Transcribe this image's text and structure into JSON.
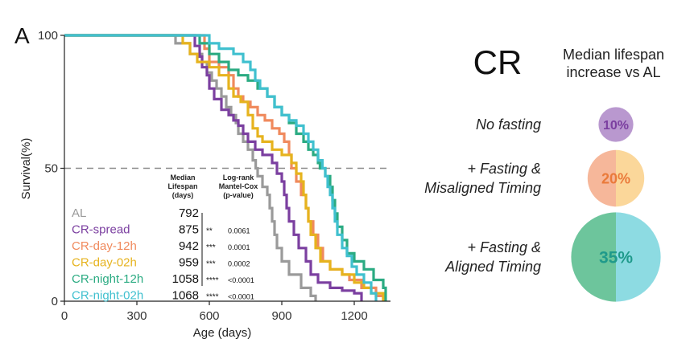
{
  "panel_label": "A",
  "chart_data": {
    "type": "line",
    "subtype": "survival-step",
    "xlabel": "Age (days)",
    "ylabel": "Survival(%)",
    "xlim": [
      0,
      1350
    ],
    "ylim": [
      0,
      100
    ],
    "xticks": [
      0,
      300,
      600,
      900,
      1200
    ],
    "yticks": [
      0,
      50,
      100
    ],
    "reference_line": {
      "y": 50,
      "style": "dashed"
    },
    "table_headers": {
      "median": [
        "Median",
        "Lifespan",
        "(days)"
      ],
      "logrank": [
        "Log-rank",
        "Mantel-Cox",
        "(p-value)"
      ]
    },
    "series": [
      {
        "name": "AL",
        "color": "#9a9a9a",
        "median_days": "792",
        "stars": "",
        "p_value": "",
        "points": [
          [
            0,
            100
          ],
          [
            430,
            100
          ],
          [
            460,
            97
          ],
          [
            520,
            93
          ],
          [
            570,
            90
          ],
          [
            590,
            86
          ],
          [
            610,
            83
          ],
          [
            630,
            80
          ],
          [
            650,
            77
          ],
          [
            670,
            73
          ],
          [
            690,
            70
          ],
          [
            710,
            67
          ],
          [
            720,
            63
          ],
          [
            740,
            60
          ],
          [
            760,
            57
          ],
          [
            780,
            53
          ],
          [
            792,
            50
          ],
          [
            800,
            47
          ],
          [
            820,
            43
          ],
          [
            840,
            40
          ],
          [
            850,
            35
          ],
          [
            860,
            30
          ],
          [
            870,
            25
          ],
          [
            880,
            20
          ],
          [
            900,
            15
          ],
          [
            930,
            10
          ],
          [
            980,
            5
          ],
          [
            1020,
            2
          ],
          [
            1040,
            0
          ]
        ]
      },
      {
        "name": "CR-spread",
        "color": "#7b3fa0",
        "median_days": "875",
        "stars": "**",
        "p_value": "0.0061",
        "points": [
          [
            0,
            100
          ],
          [
            520,
            100
          ],
          [
            540,
            96
          ],
          [
            560,
            92
          ],
          [
            570,
            88
          ],
          [
            590,
            85
          ],
          [
            600,
            80
          ],
          [
            620,
            76
          ],
          [
            650,
            72
          ],
          [
            680,
            70
          ],
          [
            700,
            68
          ],
          [
            720,
            66
          ],
          [
            740,
            63
          ],
          [
            760,
            60
          ],
          [
            790,
            57
          ],
          [
            820,
            55
          ],
          [
            860,
            52
          ],
          [
            880,
            48
          ],
          [
            900,
            45
          ],
          [
            910,
            40
          ],
          [
            920,
            35
          ],
          [
            930,
            30
          ],
          [
            950,
            25
          ],
          [
            970,
            20
          ],
          [
            1000,
            15
          ],
          [
            1020,
            10
          ],
          [
            1050,
            7
          ],
          [
            1100,
            5
          ],
          [
            1150,
            4
          ],
          [
            1200,
            3
          ],
          [
            1230,
            0
          ]
        ]
      },
      {
        "name": "CR-day-12h",
        "color": "#f08a5d",
        "median_days": "942",
        "stars": "***",
        "p_value": "0.0001",
        "points": [
          [
            0,
            100
          ],
          [
            560,
            100
          ],
          [
            580,
            95
          ],
          [
            600,
            90
          ],
          [
            640,
            88
          ],
          [
            680,
            85
          ],
          [
            700,
            80
          ],
          [
            720,
            77
          ],
          [
            740,
            75
          ],
          [
            770,
            73
          ],
          [
            800,
            70
          ],
          [
            830,
            68
          ],
          [
            860,
            65
          ],
          [
            890,
            63
          ],
          [
            910,
            60
          ],
          [
            930,
            55
          ],
          [
            940,
            50
          ],
          [
            960,
            45
          ],
          [
            980,
            40
          ],
          [
            1000,
            35
          ],
          [
            1010,
            30
          ],
          [
            1030,
            25
          ],
          [
            1050,
            20
          ],
          [
            1070,
            15
          ],
          [
            1100,
            12
          ],
          [
            1150,
            10
          ],
          [
            1180,
            8
          ],
          [
            1230,
            5
          ],
          [
            1290,
            2
          ],
          [
            1320,
            0
          ]
        ]
      },
      {
        "name": "CR-day-02h",
        "color": "#e6b31e",
        "median_days": "959",
        "stars": "***",
        "p_value": "0.0002",
        "points": [
          [
            0,
            100
          ],
          [
            470,
            100
          ],
          [
            490,
            97
          ],
          [
            520,
            93
          ],
          [
            550,
            90
          ],
          [
            600,
            88
          ],
          [
            640,
            85
          ],
          [
            680,
            80
          ],
          [
            700,
            77
          ],
          [
            730,
            75
          ],
          [
            760,
            70
          ],
          [
            780,
            65
          ],
          [
            800,
            62
          ],
          [
            820,
            60
          ],
          [
            860,
            57
          ],
          [
            900,
            55
          ],
          [
            940,
            52
          ],
          [
            960,
            48
          ],
          [
            980,
            45
          ],
          [
            990,
            40
          ],
          [
            1000,
            35
          ],
          [
            1010,
            30
          ],
          [
            1020,
            25
          ],
          [
            1040,
            20
          ],
          [
            1060,
            15
          ],
          [
            1100,
            12
          ],
          [
            1150,
            10
          ],
          [
            1200,
            7
          ],
          [
            1240,
            5
          ],
          [
            1270,
            3
          ],
          [
            1320,
            0
          ]
        ]
      },
      {
        "name": "CR-night-12h",
        "color": "#2bab82",
        "median_days": "1058",
        "stars": "****",
        "p_value": "<0.0001",
        "points": [
          [
            0,
            100
          ],
          [
            540,
            100
          ],
          [
            560,
            97
          ],
          [
            600,
            93
          ],
          [
            640,
            90
          ],
          [
            680,
            87
          ],
          [
            720,
            85
          ],
          [
            760,
            83
          ],
          [
            800,
            80
          ],
          [
            840,
            77
          ],
          [
            870,
            73
          ],
          [
            900,
            70
          ],
          [
            930,
            67
          ],
          [
            960,
            63
          ],
          [
            990,
            60
          ],
          [
            1010,
            57
          ],
          [
            1030,
            55
          ],
          [
            1050,
            52
          ],
          [
            1058,
            50
          ],
          [
            1080,
            47
          ],
          [
            1100,
            43
          ],
          [
            1110,
            38
          ],
          [
            1120,
            33
          ],
          [
            1130,
            28
          ],
          [
            1150,
            23
          ],
          [
            1170,
            18
          ],
          [
            1200,
            15
          ],
          [
            1240,
            12
          ],
          [
            1280,
            8
          ],
          [
            1320,
            5
          ],
          [
            1330,
            0
          ]
        ]
      },
      {
        "name": "CR-night-02h",
        "color": "#40c0cf",
        "median_days": "1068",
        "stars": "****",
        "p_value": "<0.0001",
        "points": [
          [
            0,
            100
          ],
          [
            580,
            100
          ],
          [
            600,
            97
          ],
          [
            640,
            95
          ],
          [
            700,
            93
          ],
          [
            740,
            90
          ],
          [
            770,
            87
          ],
          [
            790,
            83
          ],
          [
            810,
            80
          ],
          [
            840,
            77
          ],
          [
            870,
            73
          ],
          [
            900,
            70
          ],
          [
            930,
            68
          ],
          [
            960,
            66
          ],
          [
            990,
            63
          ],
          [
            1010,
            60
          ],
          [
            1030,
            57
          ],
          [
            1050,
            53
          ],
          [
            1068,
            50
          ],
          [
            1080,
            47
          ],
          [
            1090,
            43
          ],
          [
            1100,
            40
          ],
          [
            1110,
            35
          ],
          [
            1120,
            30
          ],
          [
            1130,
            25
          ],
          [
            1150,
            20
          ],
          [
            1170,
            17
          ],
          [
            1190,
            13
          ],
          [
            1210,
            10
          ],
          [
            1240,
            7
          ],
          [
            1270,
            3
          ],
          [
            1290,
            0
          ]
        ]
      }
    ]
  },
  "summary": {
    "title": "CR",
    "subtitle_lines": [
      "Median lifespan",
      "increase vs AL"
    ],
    "rows": [
      {
        "label_lines": [
          "No fasting"
        ],
        "value": 10,
        "value_label": "10%",
        "colors": [
          "#b998cf"
        ],
        "text_color": "#7b3fa0"
      },
      {
        "label_lines": [
          "+ Fasting &",
          "Misaligned Timing"
        ],
        "value": 20,
        "value_label": "20%",
        "colors": [
          "#f6b79a",
          "#fbd79a"
        ],
        "text_color": "#ea7a3a"
      },
      {
        "label_lines": [
          "+ Fasting &",
          "Aligned Timing"
        ],
        "value": 35,
        "value_label": "35%",
        "colors": [
          "#6dc59c",
          "#8ddbe2"
        ],
        "text_color": "#1f9a8b"
      }
    ]
  }
}
